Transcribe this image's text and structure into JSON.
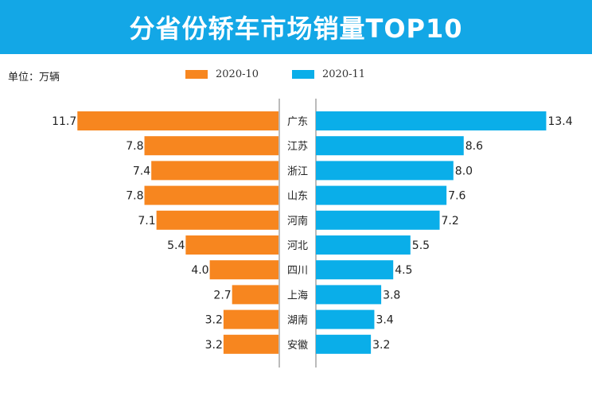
{
  "colors": {
    "header": "#13a7e6",
    "series_a": "#f7861f",
    "series_b": "#0aaee9"
  },
  "chart_data": {
    "type": "bar",
    "title": "分省份轿车市场销量TOP10",
    "unit_label": "单位：万辆",
    "categories": [
      "广东",
      "江苏",
      "浙江",
      "山东",
      "河南",
      "河北",
      "四川",
      "上海",
      "湖南",
      "安徽"
    ],
    "series": [
      {
        "name": "2020-10",
        "values": [
          11.7,
          7.8,
          7.4,
          7.8,
          7.1,
          5.4,
          4.0,
          2.7,
          3.2,
          3.2
        ]
      },
      {
        "name": "2020-11",
        "values": [
          13.4,
          8.6,
          8.0,
          7.6,
          7.2,
          5.5,
          4.5,
          3.8,
          3.4,
          3.2
        ]
      }
    ],
    "legend": "top-center",
    "grid": false
  }
}
